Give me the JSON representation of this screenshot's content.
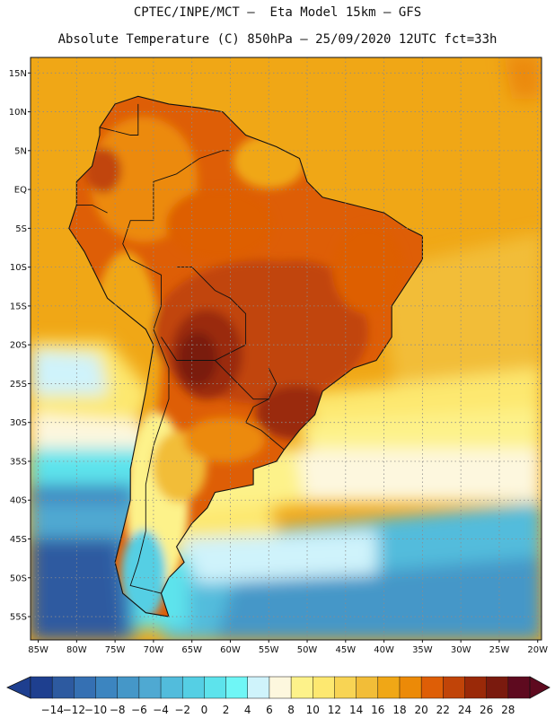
{
  "header": {
    "title_line1": "CPTEC/INPE/MCT –  Eta Model 15km – GFS",
    "title_line2": "Absolute Temperature (C) 850hPa – 25/09/2020 12UTC fct=33h"
  },
  "map": {
    "lat_labels": [
      "15N",
      "10N",
      "5N",
      "EQ",
      "5S",
      "10S",
      "15S",
      "20S",
      "25S",
      "30S",
      "35S",
      "40S",
      "45S",
      "50S",
      "55S"
    ],
    "lat_values": [
      15,
      10,
      5,
      0,
      -5,
      -10,
      -15,
      -20,
      -25,
      -30,
      -35,
      -40,
      -45,
      -50,
      -55
    ],
    "lon_labels": [
      "85W",
      "80W",
      "75W",
      "70W",
      "65W",
      "60W",
      "55W",
      "50W",
      "45W",
      "40W",
      "35W",
      "30W",
      "25W",
      "20W"
    ],
    "lon_values": [
      -85,
      -80,
      -75,
      -70,
      -65,
      -60,
      -55,
      -50,
      -45,
      -40,
      -35,
      -30,
      -25,
      -20
    ],
    "lon_range": [
      -86,
      -19.5
    ],
    "lat_range": [
      -58,
      17
    ],
    "land_outline": [
      [
        -77,
        8
      ],
      [
        -75,
        11
      ],
      [
        -72,
        12
      ],
      [
        -68,
        11
      ],
      [
        -64,
        10.5
      ],
      [
        -61,
        10
      ],
      [
        -58,
        7
      ],
      [
        -54,
        5.5
      ],
      [
        -51,
        4
      ],
      [
        -50,
        1
      ],
      [
        -48,
        -1
      ],
      [
        -44,
        -2
      ],
      [
        -40,
        -3
      ],
      [
        -37,
        -5
      ],
      [
        -35,
        -6
      ],
      [
        -35,
        -9
      ],
      [
        -37,
        -12
      ],
      [
        -39,
        -15
      ],
      [
        -39,
        -19
      ],
      [
        -41,
        -22
      ],
      [
        -44,
        -23
      ],
      [
        -48,
        -26
      ],
      [
        -49,
        -29
      ],
      [
        -51,
        -31
      ],
      [
        -53,
        -33.5
      ],
      [
        -54,
        -35
      ],
      [
        -57,
        -36
      ],
      [
        -57,
        -38
      ],
      [
        -62,
        -39
      ],
      [
        -63,
        -41
      ],
      [
        -65,
        -43
      ],
      [
        -67,
        -46
      ],
      [
        -66,
        -48
      ],
      [
        -68,
        -50
      ],
      [
        -69,
        -52
      ],
      [
        -68,
        -55
      ],
      [
        -71,
        -54.5
      ],
      [
        -74,
        -52
      ],
      [
        -75,
        -48
      ],
      [
        -74,
        -44
      ],
      [
        -73,
        -40
      ],
      [
        -73,
        -36
      ],
      [
        -72,
        -31
      ],
      [
        -71,
        -26
      ],
      [
        -70,
        -20
      ],
      [
        -71,
        -18
      ],
      [
        -76,
        -14
      ],
      [
        -79,
        -8
      ],
      [
        -81,
        -5
      ],
      [
        -80,
        -2
      ],
      [
        -80,
        1
      ],
      [
        -78,
        3
      ],
      [
        -77,
        7
      ]
    ],
    "boundary_lines": [
      [
        [
          -70,
          -18
        ],
        [
          -69,
          -15
        ],
        [
          -69,
          -11
        ],
        [
          -71,
          -10
        ],
        [
          -73,
          -9
        ],
        [
          -74,
          -7
        ],
        [
          -73,
          -4
        ],
        [
          -70,
          -4
        ],
        [
          -70,
          -2
        ],
        [
          -70,
          1
        ],
        [
          -67,
          2
        ]
      ],
      [
        [
          -67,
          2
        ],
        [
          -64,
          4
        ],
        [
          -61,
          5
        ],
        [
          -60,
          5
        ]
      ],
      [
        [
          -67,
          -10
        ],
        [
          -65,
          -10
        ],
        [
          -62,
          -13
        ],
        [
          -60,
          -14
        ],
        [
          -58,
          -16
        ],
        [
          -58,
          -20
        ],
        [
          -62,
          -22
        ],
        [
          -67,
          -22
        ],
        [
          -69,
          -19
        ]
      ],
      [
        [
          -62,
          -22
        ],
        [
          -59,
          -25
        ],
        [
          -57,
          -27
        ],
        [
          -55,
          -27
        ],
        [
          -54,
          -25
        ],
        [
          -55,
          -23
        ]
      ],
      [
        [
          -58,
          -30
        ],
        [
          -56,
          -31
        ],
        [
          -53,
          -33.5
        ]
      ],
      [
        [
          -58,
          -30
        ],
        [
          -57,
          -28
        ],
        [
          -55,
          -27
        ]
      ],
      [
        [
          -70,
          -18
        ],
        [
          -68,
          -23
        ],
        [
          -68,
          -27
        ],
        [
          -70,
          -33
        ],
        [
          -71,
          -38
        ],
        [
          -71,
          -44
        ],
        [
          -72,
          -48
        ],
        [
          -73,
          -51
        ],
        [
          -69,
          -52
        ]
      ],
      [
        [
          -76,
          -3
        ],
        [
          -78,
          -2
        ],
        [
          -80,
          -2
        ]
      ],
      [
        [
          -77,
          8
        ],
        [
          -73,
          7
        ],
        [
          -72,
          7
        ],
        [
          -72,
          9
        ],
        [
          -72,
          11
        ]
      ]
    ]
  },
  "colorbar": {
    "labels": [
      "-14",
      "-12",
      "-10",
      "-8",
      "-6",
      "-4",
      "-2",
      "0",
      "2",
      "4",
      "6",
      "8",
      "10",
      "12",
      "14",
      "16",
      "18",
      "20",
      "22",
      "24",
      "26",
      "28"
    ],
    "values": [
      -14,
      -12,
      -10,
      -8,
      -6,
      -4,
      -2,
      0,
      2,
      4,
      6,
      8,
      10,
      12,
      14,
      16,
      18,
      20,
      22,
      24,
      26,
      28
    ],
    "colors": [
      "#1e3f8f",
      "#2d5aa0",
      "#3570b3",
      "#3c85c0",
      "#4597c8",
      "#4fa9d2",
      "#52bcdc",
      "#55cfe4",
      "#5de3ec",
      "#6ff6f6",
      "#cff3fb",
      "#fdf7de",
      "#fdf28a",
      "#fde870",
      "#f8d454",
      "#f2bd38",
      "#f0a716",
      "#ec8a07",
      "#de5e06",
      "#c14408",
      "#9a2908",
      "#7a1a0e",
      "#5e0a1f"
    ]
  }
}
